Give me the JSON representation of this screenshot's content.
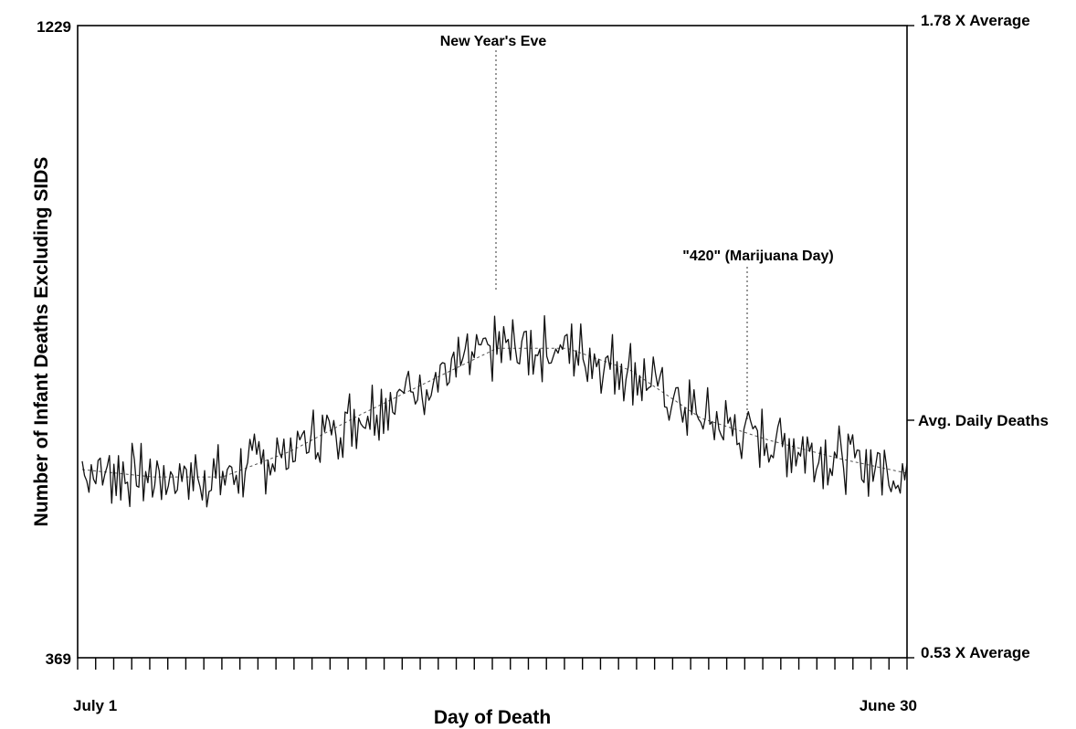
{
  "chart_data": {
    "type": "line",
    "title": "",
    "xlabel": "Day of Death",
    "ylabel": "Number of Infant Deaths Excluding SIDS",
    "x_ticks": {
      "start_label": "July 1",
      "end_label": "June 30"
    },
    "ylim": [
      369,
      1229
    ],
    "y_ticks_left": [
      "1229",
      "369"
    ],
    "y_ticks_right": [
      {
        "label": "1.78 X Average",
        "value": 1229
      },
      {
        "label": "Avg. Daily Deaths",
        "value": 691
      },
      {
        "label": "0.53 X Average",
        "value": 369
      }
    ],
    "annotations": [
      {
        "label": "New Year's Eve",
        "x": "Dec 31"
      },
      {
        "label": "\"420\" (Marijuana Day)",
        "x": "Apr 20"
      }
    ],
    "grid": false,
    "series": [
      {
        "values_approx_monthly": [
          {
            "x": "Jul 1",
            "y": 625
          },
          {
            "x": "Aug 1",
            "y": 615
          },
          {
            "x": "Sep 1",
            "y": 615
          },
          {
            "x": "Oct 1",
            "y": 650
          },
          {
            "x": "Nov 1",
            "y": 700
          },
          {
            "x": "Dec 1",
            "y": 745
          },
          {
            "x": "Dec 31",
            "y": 790
          },
          {
            "x": "Feb 1",
            "y": 790
          },
          {
            "x": "Mar 1",
            "y": 760
          },
          {
            "x": "Apr 1",
            "y": 695
          },
          {
            "x": "May 1",
            "y": 665
          },
          {
            "x": "Jun 1",
            "y": 640
          },
          {
            "x": "Jun 30",
            "y": 620
          }
        ]
      }
    ]
  }
}
